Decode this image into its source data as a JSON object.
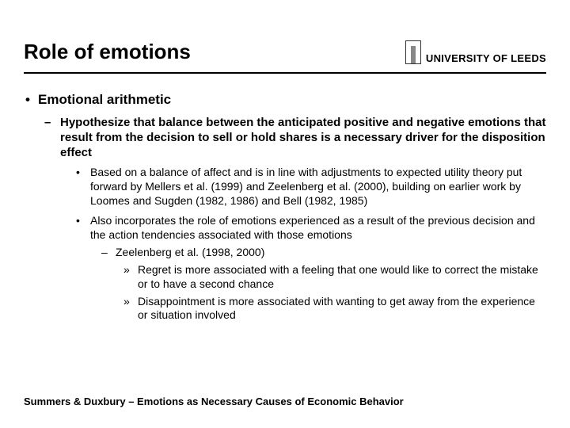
{
  "slide": {
    "title": "Role of emotions",
    "logo_text": "UNIVERSITY OF LEEDS",
    "footer": "Summers & Duxbury – Emotions as Necessary Causes of Economic Behavior",
    "bullets": {
      "l1": "Emotional arithmetic",
      "l2": "Hypothesize that balance between the anticipated positive and negative emotions that result from the decision to sell or hold shares is a necessary driver for the disposition effect",
      "l3a": "Based on a balance of affect and is in line with adjustments to expected utility theory put forward by Mellers et al. (1999) and  Zeelenberg et al. (2000), building on earlier work by Loomes and Sugden (1982, 1986) and Bell (1982, 1985)",
      "l3b": "Also incorporates the role of emotions experienced as a result of the previous decision and the action tendencies associated with those emotions",
      "l4": "Zeelenberg et al. (1998, 2000)",
      "l5a": "Regret is more associated with a feeling that one would like to correct the mistake or to have a second chance",
      "l5b": "Disappointment is more associated with wanting to get away from the experience or situation involved"
    },
    "colors": {
      "text": "#000000",
      "background": "#ffffff",
      "rule": "#000000"
    },
    "fonts": {
      "family": "Arial",
      "title_size_pt": 26,
      "l1_size_pt": 17,
      "l2_size_pt": 15,
      "l3_size_pt": 14,
      "footer_size_pt": 13
    }
  }
}
